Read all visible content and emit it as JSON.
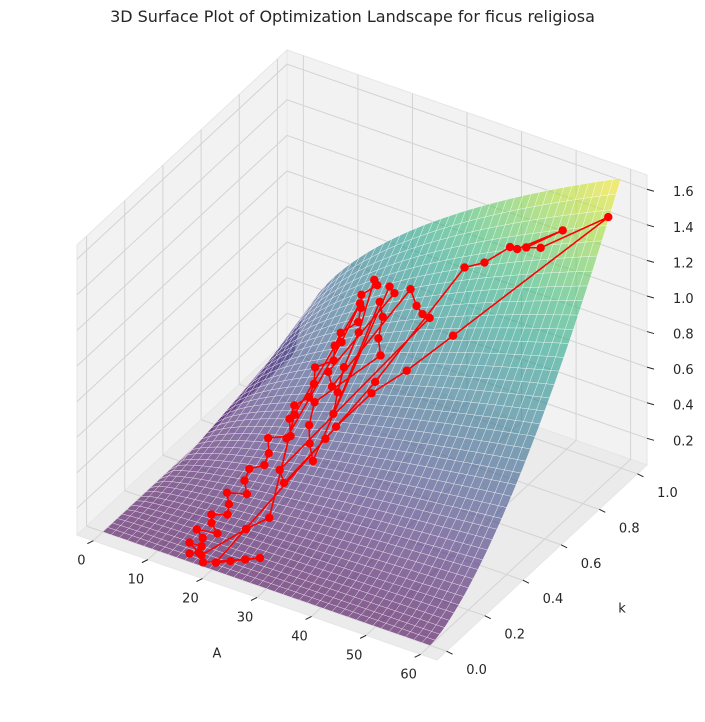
{
  "chart_data": {
    "type": "surface3d",
    "title": "3D Surface Plot of Optimization Landscape for ficus religiosa",
    "xlabel": "A",
    "ylabel": "k",
    "zlabel": "",
    "xlim": [
      -3,
      63
    ],
    "ylim": [
      -0.05,
      1.05
    ],
    "zlim": [
      0.05,
      1.68
    ],
    "x_ticks": [
      "0",
      "10",
      "20",
      "30",
      "40",
      "50",
      "60"
    ],
    "y_ticks": [
      "0.0",
      "0.2",
      "0.4",
      "0.6",
      "0.8",
      "1.0"
    ],
    "z_ticks": [
      "0.2",
      "0.4",
      "0.6",
      "0.8",
      "1.0",
      "1.2",
      "1.4",
      "1.6"
    ],
    "surface": {
      "colormap": "viridis",
      "alpha": 0.6,
      "A_range": [
        0,
        60
      ],
      "k_range": [
        0,
        1
      ],
      "height_min": 0.05,
      "height_max": 1.68
    },
    "trajectory": {
      "color": "#ff0000",
      "marker": "o",
      "points": [
        [
          15.2,
          0.02,
          0.07
        ],
        [
          16.5,
          0.03,
          0.08
        ],
        [
          14.1,
          0.05,
          0.09
        ],
        [
          16.0,
          0.06,
          0.08
        ],
        [
          15.5,
          0.08,
          0.1
        ],
        [
          13.7,
          0.1,
          0.11
        ],
        [
          16.8,
          0.12,
          0.1
        ],
        [
          15.0,
          0.14,
          0.12
        ],
        [
          14.3,
          0.16,
          0.14
        ],
        [
          16.2,
          0.19,
          0.13
        ],
        [
          15.4,
          0.22,
          0.15
        ],
        [
          14.0,
          0.25,
          0.17
        ],
        [
          16.6,
          0.28,
          0.16
        ],
        [
          15.1,
          0.31,
          0.19
        ],
        [
          14.6,
          0.35,
          0.21
        ],
        [
          16.3,
          0.38,
          0.22
        ],
        [
          15.7,
          0.42,
          0.24
        ],
        [
          14.2,
          0.46,
          0.27
        ],
        [
          16.9,
          0.5,
          0.27
        ],
        [
          15.3,
          0.54,
          0.31
        ],
        [
          14.8,
          0.58,
          0.34
        ],
        [
          16.1,
          0.62,
          0.36
        ],
        [
          15.6,
          0.66,
          0.39
        ],
        [
          14.4,
          0.7,
          0.43
        ],
        [
          16.4,
          0.74,
          0.45
        ],
        [
          15.2,
          0.78,
          0.48
        ],
        [
          14.9,
          0.82,
          0.51
        ],
        [
          16.7,
          0.86,
          0.55
        ],
        [
          15.8,
          0.9,
          0.58
        ],
        [
          14.5,
          0.94,
          0.6
        ],
        [
          16.0,
          0.98,
          0.63
        ],
        [
          15.1,
          0.99,
          0.64
        ],
        [
          17.5,
          0.84,
          0.52
        ],
        [
          19.0,
          0.72,
          0.46
        ],
        [
          21.0,
          0.63,
          0.43
        ],
        [
          23.0,
          0.55,
          0.41
        ],
        [
          18.2,
          0.93,
          0.61
        ],
        [
          20.5,
          0.88,
          0.6
        ],
        [
          22.5,
          0.8,
          0.58
        ],
        [
          25.0,
          0.74,
          0.57
        ],
        [
          17.8,
          0.6,
          0.37
        ],
        [
          19.6,
          0.52,
          0.34
        ],
        [
          21.8,
          0.46,
          0.32
        ],
        [
          24.5,
          0.4,
          0.31
        ],
        [
          18.6,
          0.97,
          0.66
        ],
        [
          20.2,
          0.95,
          0.66
        ],
        [
          16.8,
          0.7,
          0.43
        ],
        [
          18.9,
          0.66,
          0.41
        ],
        [
          22.8,
          0.96,
          0.7
        ],
        [
          26.0,
          0.9,
          0.7
        ],
        [
          28.5,
          0.86,
          0.72
        ],
        [
          30.5,
          0.84,
          0.74
        ],
        [
          19.8,
          0.36,
          0.25
        ],
        [
          22.0,
          0.32,
          0.24
        ],
        [
          24.0,
          0.48,
          0.35
        ],
        [
          26.8,
          0.66,
          0.52
        ],
        [
          32.0,
          0.98,
          0.9
        ],
        [
          36.0,
          0.97,
          0.98
        ],
        [
          40.0,
          0.99,
          1.09
        ],
        [
          42.0,
          0.97,
          1.12
        ],
        [
          50.0,
          0.98,
          1.3
        ],
        [
          44.0,
          0.96,
          1.16
        ],
        [
          47.0,
          0.95,
          1.2
        ],
        [
          58.0,
          0.99,
          1.45
        ],
        [
          39.0,
          0.72,
          0.85
        ],
        [
          34.0,
          0.62,
          0.7
        ],
        [
          30.0,
          0.55,
          0.6
        ],
        [
          27.0,
          0.45,
          0.48
        ],
        [
          20.0,
          0.02,
          0.07
        ],
        [
          22.0,
          0.04,
          0.08
        ],
        [
          24.0,
          0.06,
          0.09
        ],
        [
          26.0,
          0.08,
          0.1
        ],
        [
          18.0,
          0.01,
          0.06
        ],
        [
          17.0,
          0.03,
          0.07
        ],
        [
          21.0,
          0.15,
          0.14
        ],
        [
          23.5,
          0.2,
          0.18
        ],
        [
          15.9,
          0.55,
          0.33
        ],
        [
          15.3,
          0.91,
          0.59
        ],
        [
          16.1,
          0.79,
          0.5
        ],
        [
          17.2,
          0.47,
          0.29
        ]
      ]
    }
  }
}
